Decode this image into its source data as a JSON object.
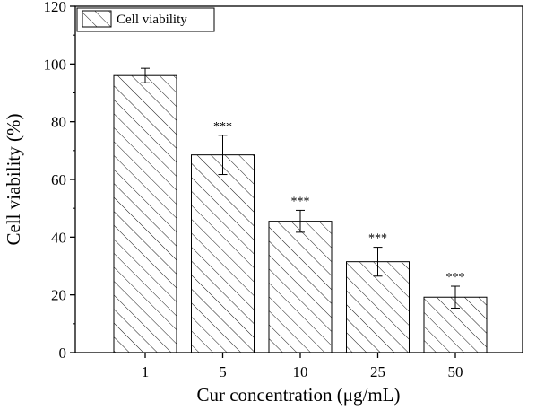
{
  "chart_data": {
    "type": "bar",
    "xlabel": "Cur concentration (μg/mL)",
    "ylabel": "Cell viability (%)",
    "ylim": [
      0,
      120
    ],
    "yticks": [
      0,
      20,
      40,
      60,
      80,
      100,
      120
    ],
    "categories": [
      "1",
      "5",
      "10",
      "25",
      "50"
    ],
    "series": [
      {
        "name": "Cell viability",
        "values": [
          96,
          68.5,
          45.5,
          31.5,
          19.2
        ],
        "errors": [
          2.5,
          6.8,
          3.8,
          5,
          3.8
        ],
        "significance": [
          "",
          "***",
          "***",
          "***",
          "***"
        ]
      }
    ],
    "legend": "top-left",
    "grid": false,
    "bar_fill": "hatched",
    "colors": {
      "bar_edge": "#000000",
      "hatch": "#000000",
      "background": "#ffffff"
    }
  }
}
